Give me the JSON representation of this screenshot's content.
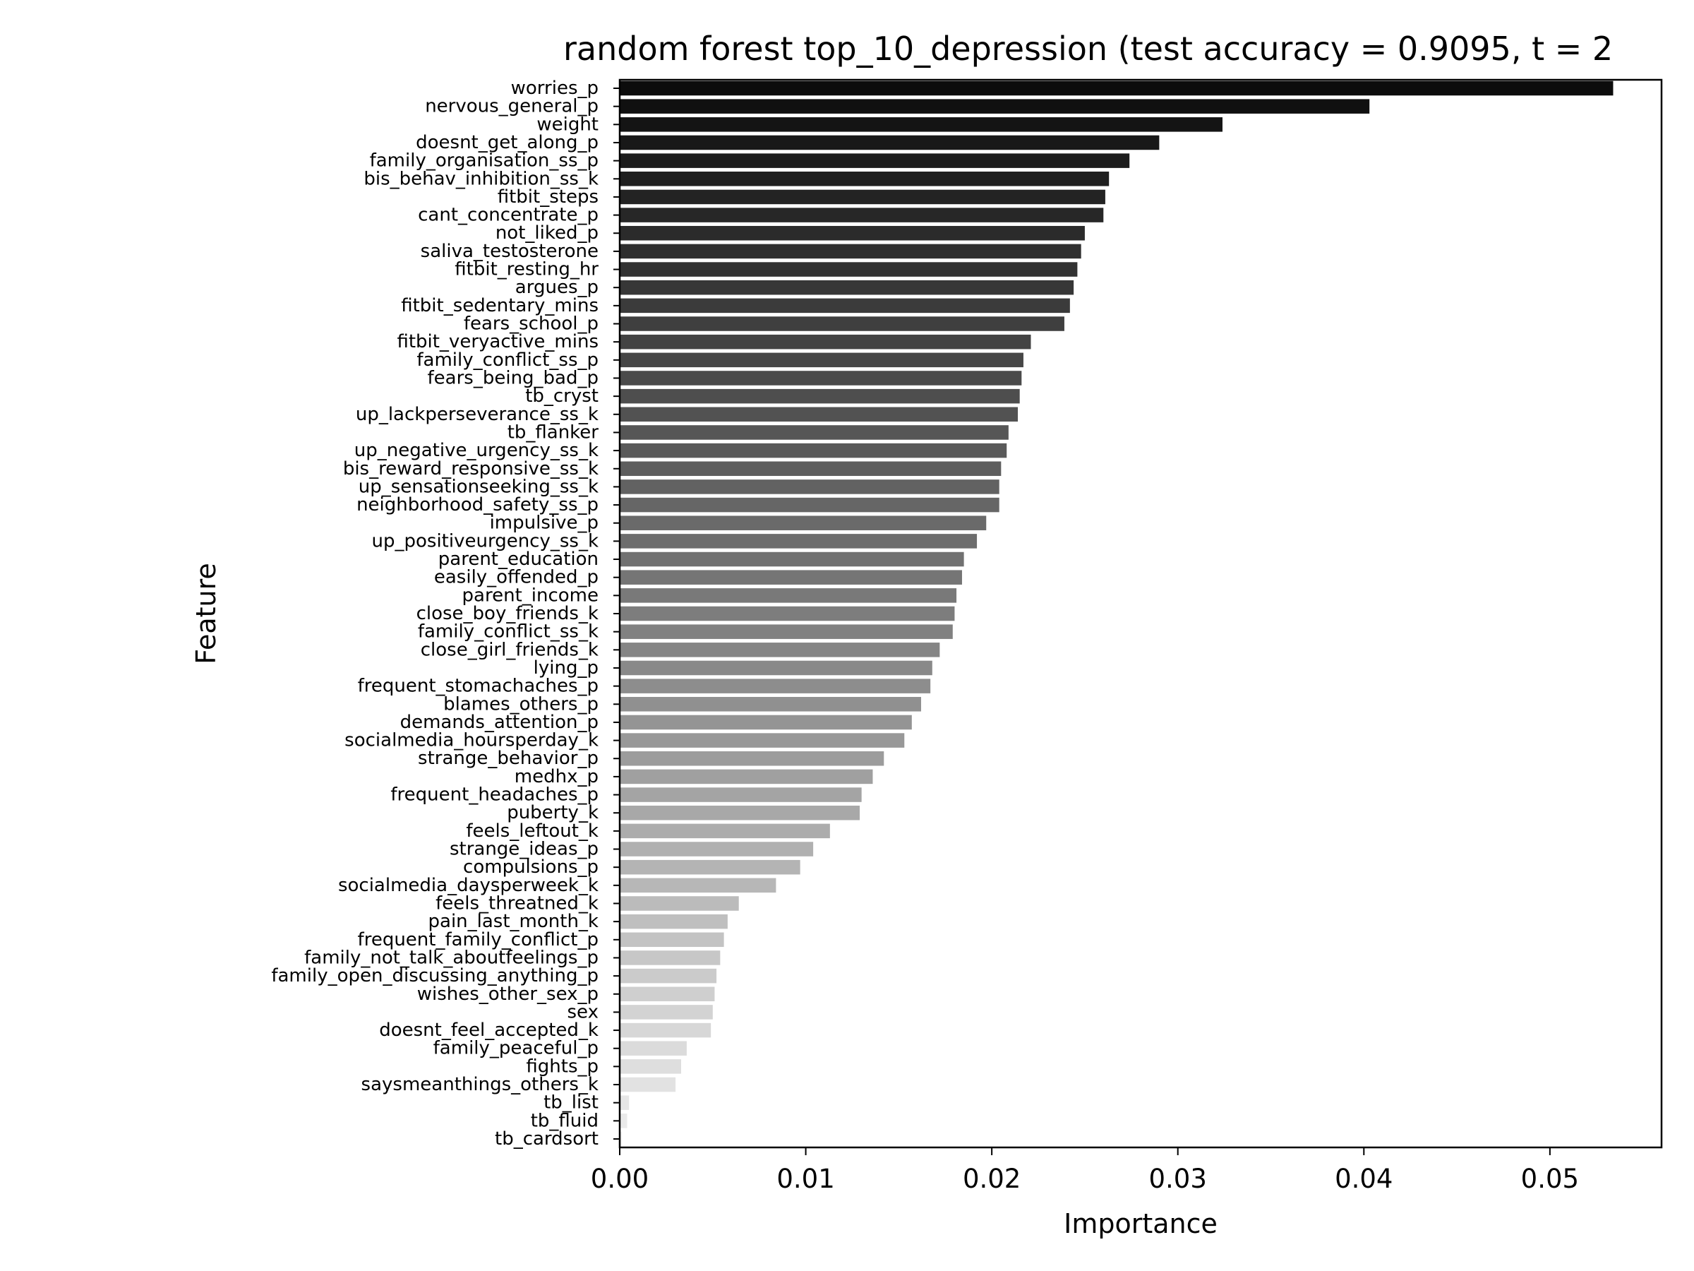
{
  "chart_data": {
    "type": "bar",
    "orientation": "horizontal",
    "title": "random forest top_10_depression (test accuracy = 0.9095, t = 2",
    "xlabel": "Importance",
    "ylabel": "Feature",
    "xlim": [
      0,
      0.056
    ],
    "xticks": [
      0.0,
      0.01,
      0.02,
      0.03,
      0.04,
      0.05
    ],
    "xtick_labels": [
      "0.00",
      "0.01",
      "0.02",
      "0.03",
      "0.04",
      "0.05"
    ],
    "grid": false,
    "legend": "none",
    "color_scale": "greys, dark for high importance to light for low importance",
    "categories": [
      "worries_p",
      "nervous_general_p",
      "weight",
      "doesnt_get_along_p",
      "family_organisation_ss_p",
      "bis_behav_inhibition_ss_k",
      "fitbit_steps",
      "cant_concentrate_p",
      "not_liked_p",
      "saliva_testosterone",
      "fitbit_resting_hr",
      "argues_p",
      "fitbit_sedentary_mins",
      "fears_school_p",
      "fitbit_veryactive_mins",
      "family_conflict_ss_p",
      "fears_being_bad_p",
      "tb_cryst",
      "up_lackperseverance_ss_k",
      "tb_flanker",
      "up_negative_urgency_ss_k",
      "bis_reward_responsive_ss_k",
      "up_sensationseeking_ss_k",
      "neighborhood_safety_ss_p",
      "impulsive_p",
      "up_positiveurgency_ss_k",
      "parent_education",
      "easily_offended_p",
      "parent_income",
      "close_boy_friends_k",
      "family_conflict_ss_k",
      "close_girl_friends_k",
      "lying_p",
      "frequent_stomachaches_p",
      "blames_others_p",
      "demands_attention_p",
      "socialmedia_hoursperday_k",
      "strange_behavior_p",
      "medhx_p",
      "frequent_headaches_p",
      "puberty_k",
      "feels_leftout_k",
      "strange_ideas_p",
      "compulsions_p",
      "socialmedia_daysperweek_k",
      "feels_threatned_k",
      "pain_last_month_k",
      "frequent_family_conflict_p",
      "family_not_talk_aboutfeelings_p",
      "family_open_discussing_anything_p",
      "wishes_other_sex_p",
      "sex",
      "doesnt_feel_accepted_k",
      "family_peaceful_p",
      "fights_p",
      "saysmeanthings_others_k",
      "tb_list",
      "tb_fluid",
      "tb_cardsort"
    ],
    "values": [
      0.0534,
      0.0403,
      0.0324,
      0.029,
      0.0274,
      0.0263,
      0.0261,
      0.026,
      0.025,
      0.0248,
      0.0246,
      0.0244,
      0.0242,
      0.0239,
      0.0221,
      0.0217,
      0.0216,
      0.0215,
      0.0214,
      0.0209,
      0.0208,
      0.0205,
      0.0204,
      0.0204,
      0.0197,
      0.0192,
      0.0185,
      0.0184,
      0.0181,
      0.018,
      0.0179,
      0.0172,
      0.0168,
      0.0167,
      0.0162,
      0.0157,
      0.0153,
      0.0142,
      0.0136,
      0.013,
      0.0129,
      0.0113,
      0.0104,
      0.0097,
      0.0084,
      0.0064,
      0.0058,
      0.0056,
      0.0054,
      0.0052,
      0.0051,
      0.005,
      0.0049,
      0.0036,
      0.0033,
      0.003,
      0.0005,
      0.0004,
      0.0001
    ]
  }
}
